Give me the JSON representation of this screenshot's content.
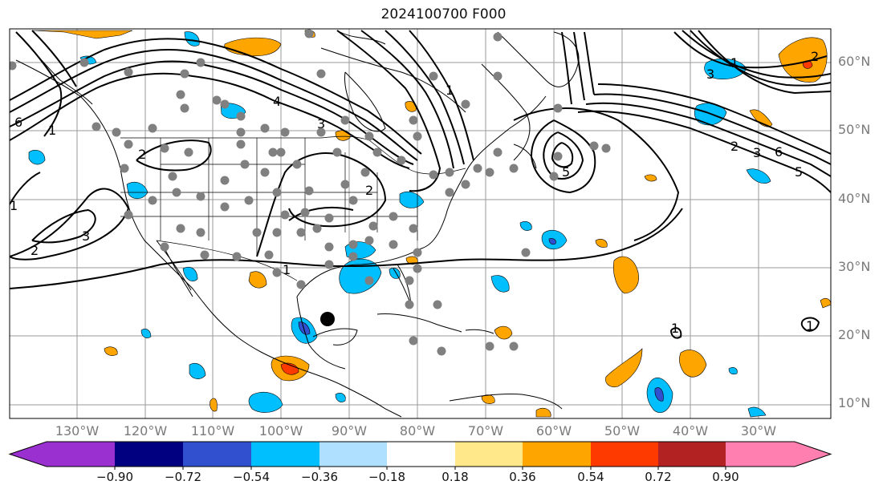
{
  "title": "2024100700 F000",
  "lon_labels": [
    "130°W",
    "120°W",
    "110°W",
    "100°W",
    "90°W",
    "80°W",
    "70°W",
    "60°W",
    "50°W",
    "40°W",
    "30°W"
  ],
  "lat_labels": [
    "60°N",
    "50°N",
    "40°N",
    "30°N",
    "20°N",
    "10°N"
  ],
  "contour_labels": [
    "1",
    "2",
    "3",
    "4",
    "5",
    "6"
  ],
  "colorbar": {
    "tick_labels": [
      "−0.90",
      "−0.72",
      "−0.54",
      "−0.36",
      "−0.18",
      "0.18",
      "0.36",
      "0.54",
      "0.72",
      "0.90"
    ],
    "colors": [
      "#9b30d0",
      "#000080",
      "#3050d0",
      "#00bfff",
      "#b0e0ff",
      "#ffffff",
      "#ffe88a",
      "#ffa500",
      "#ff3a00",
      "#b22222",
      "#ff80b0"
    ]
  },
  "marker_color": "#000000",
  "station_color": "#808080"
}
